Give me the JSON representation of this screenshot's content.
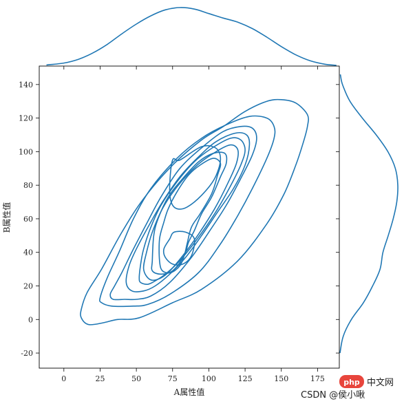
{
  "chart_data": {
    "type": "kde-jointplot",
    "color": "#1f77b4",
    "xlabel": "A属性值",
    "ylabel": "B属性值",
    "xlim": [
      -17,
      190
    ],
    "ylim": [
      -29,
      151
    ],
    "xticks": [
      0,
      25,
      50,
      75,
      100,
      125,
      150,
      175
    ],
    "yticks": [
      -20,
      0,
      20,
      40,
      60,
      80,
      100,
      120,
      140
    ],
    "joint_contours": [
      {
        "level": 1,
        "points": [
          [
            12,
            6
          ],
          [
            12,
            1
          ],
          [
            17,
            -3
          ],
          [
            27,
            -2
          ],
          [
            37,
            0
          ],
          [
            52,
            1
          ],
          [
            75,
            10
          ],
          [
            95,
            18
          ],
          [
            120,
            35
          ],
          [
            140,
            57
          ],
          [
            152,
            75
          ],
          [
            160,
            92
          ],
          [
            165,
            105
          ],
          [
            168,
            115
          ],
          [
            168,
            122
          ],
          [
            160,
            129
          ],
          [
            150,
            131
          ],
          [
            140,
            130
          ],
          [
            125,
            124
          ],
          [
            110,
            115
          ],
          [
            95,
            107
          ],
          [
            75,
            92
          ],
          [
            55,
            72
          ],
          [
            40,
            52
          ],
          [
            26,
            30
          ],
          [
            16,
            16
          ]
        ]
      },
      {
        "level": 2,
        "points": [
          [
            25,
            13
          ],
          [
            26,
            10
          ],
          [
            33,
            8
          ],
          [
            48,
            8
          ],
          [
            58,
            9
          ],
          [
            73,
            15
          ],
          [
            93,
            28
          ],
          [
            108,
            45
          ],
          [
            120,
            62
          ],
          [
            130,
            78
          ],
          [
            140,
            96
          ],
          [
            145,
            108
          ],
          [
            145,
            115
          ],
          [
            140,
            120
          ],
          [
            128,
            121
          ],
          [
            112,
            116
          ],
          [
            95,
            108
          ],
          [
            78,
            96
          ],
          [
            60,
            78
          ],
          [
            48,
            60
          ],
          [
            38,
            40
          ],
          [
            30,
            25
          ]
        ]
      },
      {
        "level": 3,
        "points": [
          [
            32,
            15
          ],
          [
            34,
            12
          ],
          [
            42,
            12
          ],
          [
            50,
            12
          ],
          [
            60,
            14
          ],
          [
            73,
            22
          ],
          [
            88,
            37
          ],
          [
            100,
            52
          ],
          [
            112,
            68
          ],
          [
            122,
            84
          ],
          [
            130,
            98
          ],
          [
            133,
            108
          ],
          [
            130,
            114
          ],
          [
            122,
            115
          ],
          [
            110,
            112
          ],
          [
            96,
            103
          ],
          [
            80,
            90
          ],
          [
            67,
            73
          ],
          [
            57,
            57
          ],
          [
            48,
            42
          ],
          [
            40,
            28
          ],
          [
            35,
            20
          ]
        ]
      },
      {
        "level": 4,
        "points": [
          [
            43,
            22
          ],
          [
            47,
            17
          ],
          [
            55,
            17
          ],
          [
            63,
            20
          ],
          [
            73,
            27
          ],
          [
            84,
            37
          ],
          [
            95,
            50
          ],
          [
            106,
            64
          ],
          [
            117,
            78
          ],
          [
            125,
            92
          ],
          [
            128,
            104
          ],
          [
            126,
            110
          ],
          [
            118,
            111
          ],
          [
            105,
            106
          ],
          [
            93,
            97
          ],
          [
            80,
            85
          ],
          [
            68,
            70
          ],
          [
            58,
            55
          ],
          [
            50,
            42
          ],
          [
            45,
            32
          ]
        ]
      },
      {
        "level": 5,
        "points": [
          [
            52,
            25
          ],
          [
            53,
            22
          ],
          [
            58,
            21
          ],
          [
            63,
            23
          ],
          [
            70,
            27
          ],
          [
            80,
            35
          ],
          [
            92,
            48
          ],
          [
            104,
            63
          ],
          [
            114,
            78
          ],
          [
            122,
            92
          ],
          [
            125,
            101
          ],
          [
            122,
            107
          ],
          [
            115,
            108
          ],
          [
            102,
            102
          ],
          [
            90,
            94
          ],
          [
            78,
            82
          ],
          [
            67,
            68
          ],
          [
            60,
            55
          ],
          [
            55,
            42
          ],
          [
            53,
            33
          ]
        ]
      },
      {
        "level": 6,
        "points": [
          [
            55,
            30
          ],
          [
            59,
            24
          ],
          [
            65,
            24
          ],
          [
            72,
            28
          ],
          [
            82,
            38
          ],
          [
            93,
            51
          ],
          [
            104,
            66
          ],
          [
            113,
            81
          ],
          [
            119,
            93
          ],
          [
            120,
            101
          ],
          [
            115,
            104
          ],
          [
            105,
            100
          ],
          [
            92,
            92
          ],
          [
            78,
            79
          ],
          [
            68,
            66
          ],
          [
            61,
            52
          ],
          [
            57,
            40
          ]
        ]
      },
      {
        "level": 7,
        "points": [
          [
            61,
            35
          ],
          [
            61,
            29
          ],
          [
            67,
            27
          ],
          [
            75,
            29
          ],
          [
            83,
            38
          ],
          [
            86,
            46
          ],
          [
            90,
            53
          ],
          [
            95,
            63
          ],
          [
            102,
            73
          ],
          [
            108,
            85
          ],
          [
            112,
            93
          ],
          [
            111,
            99
          ],
          [
            103,
            99
          ],
          [
            93,
            94
          ],
          [
            82,
            84
          ],
          [
            72,
            73
          ],
          [
            65,
            60
          ],
          [
            62,
            50
          ]
        ]
      },
      {
        "level": 8,
        "points": [
          [
            66,
            35
          ],
          [
            68,
            29
          ],
          [
            74,
            28
          ],
          [
            80,
            32
          ],
          [
            83,
            38
          ],
          [
            85,
            45
          ],
          [
            88,
            55
          ],
          [
            94,
            63
          ],
          [
            102,
            75
          ],
          [
            106,
            86
          ],
          [
            108,
            93
          ],
          [
            103,
            96
          ],
          [
            94,
            92
          ],
          [
            86,
            86
          ],
          [
            78,
            76
          ],
          [
            72,
            66
          ],
          [
            69,
            58
          ],
          [
            66,
            48
          ]
        ]
      },
      {
        "level": 9,
        "points": [
          [
            75,
            95
          ],
          [
            80,
            95
          ],
          [
            95,
            103
          ],
          [
            105,
            102
          ],
          [
            108,
            95
          ],
          [
            104,
            84
          ],
          [
            95,
            74
          ],
          [
            85,
            67
          ],
          [
            78,
            66
          ],
          [
            74,
            70
          ],
          [
            73,
            80
          ]
        ]
      },
      {
        "level": 9,
        "points": [
          [
            73,
            48
          ],
          [
            76,
            52
          ],
          [
            84,
            52
          ],
          [
            90,
            48
          ],
          [
            88,
            38
          ],
          [
            82,
            33
          ],
          [
            75,
            33
          ],
          [
            70,
            37
          ],
          [
            69,
            42
          ]
        ]
      }
    ],
    "x_marginal_density": {
      "x": [
        -12,
        0,
        10,
        20,
        30,
        40,
        50,
        60,
        70,
        80,
        90,
        100,
        110,
        120,
        130,
        140,
        150,
        160,
        170,
        180,
        188
      ],
      "density": [
        0.0003,
        0.0008,
        0.0018,
        0.0035,
        0.0058,
        0.0086,
        0.0112,
        0.0134,
        0.015,
        0.0156,
        0.0152,
        0.014,
        0.0128,
        0.0117,
        0.01,
        0.0077,
        0.0052,
        0.003,
        0.0014,
        0.0005,
        0.0002
      ]
    },
    "y_marginal_density": {
      "y": [
        -20,
        -10,
        0,
        10,
        20,
        30,
        40,
        50,
        60,
        70,
        80,
        90,
        100,
        110,
        120,
        130,
        140,
        146
      ],
      "density": [
        0.0002,
        0.0011,
        0.0034,
        0.0068,
        0.0094,
        0.0115,
        0.0123,
        0.0138,
        0.0152,
        0.0162,
        0.0165,
        0.0158,
        0.0137,
        0.0104,
        0.0065,
        0.003,
        0.0009,
        0.0003
      ]
    }
  },
  "watermark": {
    "logo_text": "php",
    "site_text": "中文网",
    "author_text": "CSDN @侯小啾"
  }
}
